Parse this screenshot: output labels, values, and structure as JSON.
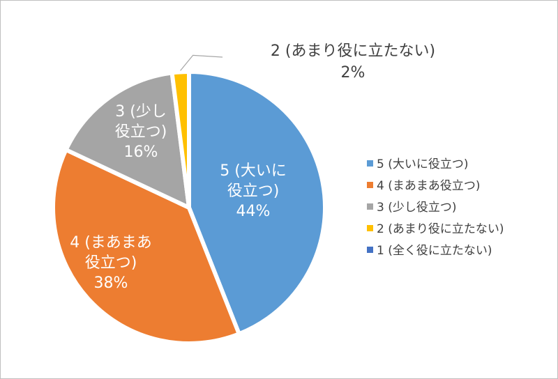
{
  "chart_data": {
    "type": "pie",
    "start_angle_deg": 0,
    "direction": "clockwise",
    "legend_position": "right",
    "slices": [
      {
        "name": "5 (大いに役立つ)",
        "value": 44,
        "color": "#5B9BD5",
        "label_lines": [
          "5 (大いに",
          "役立つ)",
          "44%"
        ],
        "label_color": "#ffffff"
      },
      {
        "name": "4 (まあまあ役立つ)",
        "value": 38,
        "color": "#ED7D31",
        "label_lines": [
          "4 (まあまあ",
          "役立つ)",
          "38%"
        ],
        "label_color": "#ffffff"
      },
      {
        "name": "3 (少し役立つ)",
        "value": 16,
        "color": "#A5A5A5",
        "label_lines": [
          "3 (少し",
          "役立つ)",
          "16%"
        ],
        "label_color": "#ffffff"
      },
      {
        "name": "2 (あまり役に立たない)",
        "value": 2,
        "color": "#FFC000",
        "label_lines": [
          "2 (あまり役に立たない)",
          "2%"
        ],
        "label_color": "#404040"
      },
      {
        "name": "1 (全く役に立たない)",
        "value": 0,
        "color": "#4472C4",
        "label_lines": [],
        "label_color": "#404040"
      }
    ]
  }
}
